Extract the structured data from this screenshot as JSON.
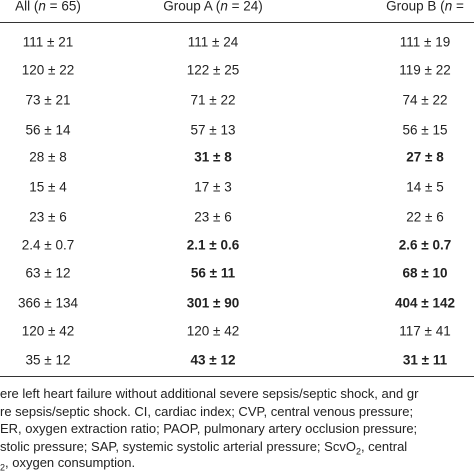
{
  "table": {
    "header": [
      [
        "All (",
        "n",
        " = 65)"
      ],
      [
        "Group A (",
        "n",
        " = 24)"
      ],
      [
        "Group B (",
        "n",
        " = "
      ]
    ],
    "rows": [
      [
        {
          "text": "111 ± 21"
        },
        {
          "text": "111 ± 24"
        },
        {
          "text": "111 ± 19"
        }
      ],
      [
        {
          "text": "120 ± 22"
        },
        {
          "text": "122 ± 25"
        },
        {
          "text": "119 ± 22"
        }
      ],
      [
        {
          "text": "73 ± 21"
        },
        {
          "text": "71 ± 22"
        },
        {
          "text": "74 ± 22"
        }
      ],
      [
        {
          "text": "56 ± 14"
        },
        {
          "text": "57 ± 13"
        },
        {
          "text": "56 ± 15"
        }
      ],
      [
        {
          "text": "28 ± 8"
        },
        {
          "text": "31 ± 8",
          "bold": true
        },
        {
          "text": "27 ± 8",
          "bold": true
        }
      ],
      [
        {
          "text": "15 ± 4"
        },
        {
          "text": "17 ± 3"
        },
        {
          "text": "14 ± 5"
        }
      ],
      [
        {
          "text": "23 ± 6"
        },
        {
          "text": "23 ± 6"
        },
        {
          "text": "22 ± 6"
        }
      ],
      [
        {
          "text": "2.4 ± 0.7"
        },
        {
          "text": "2.1 ± 0.6",
          "bold": true
        },
        {
          "text": "2.6 ± 0.7",
          "bold": true
        }
      ],
      [
        {
          "text": "63 ± 12"
        },
        {
          "text": "56 ± 11",
          "bold": true
        },
        {
          "text": "68 ± 10",
          "bold": true
        }
      ],
      [
        {
          "text": "366 ± 134"
        },
        {
          "text": "301 ± 90",
          "bold": true
        },
        {
          "text": "404 ± 142",
          "bold": true
        }
      ],
      [
        {
          "text": "120 ± 42"
        },
        {
          "text": "120 ± 42"
        },
        {
          "text": "117 ± 41"
        }
      ],
      [
        {
          "text": "35 ± 12"
        },
        {
          "text": "43 ± 12",
          "bold": true
        },
        {
          "text": "31 ± 11",
          "bold": true
        }
      ]
    ]
  },
  "footnote": [
    [
      {
        "text": "ere left heart failure without additional severe sepsis/septic shock, and gr"
      }
    ],
    [
      {
        "text": "re sepsis/septic shock. CI, cardiac index; CVP, central venous pressure;"
      }
    ],
    [
      {
        "text": "ER, oxygen extraction ratio; PAOP, pulmonary artery occlusion pressure;"
      }
    ],
    [
      {
        "text": "stolic pressure; SAP, systemic systolic arterial pressure; ScvO"
      },
      {
        "text": "2",
        "sub": true
      },
      {
        "text": ", central"
      }
    ],
    [
      {
        "text": "2",
        "sub": true
      },
      {
        "text": ", oxygen consumption."
      }
    ]
  ]
}
